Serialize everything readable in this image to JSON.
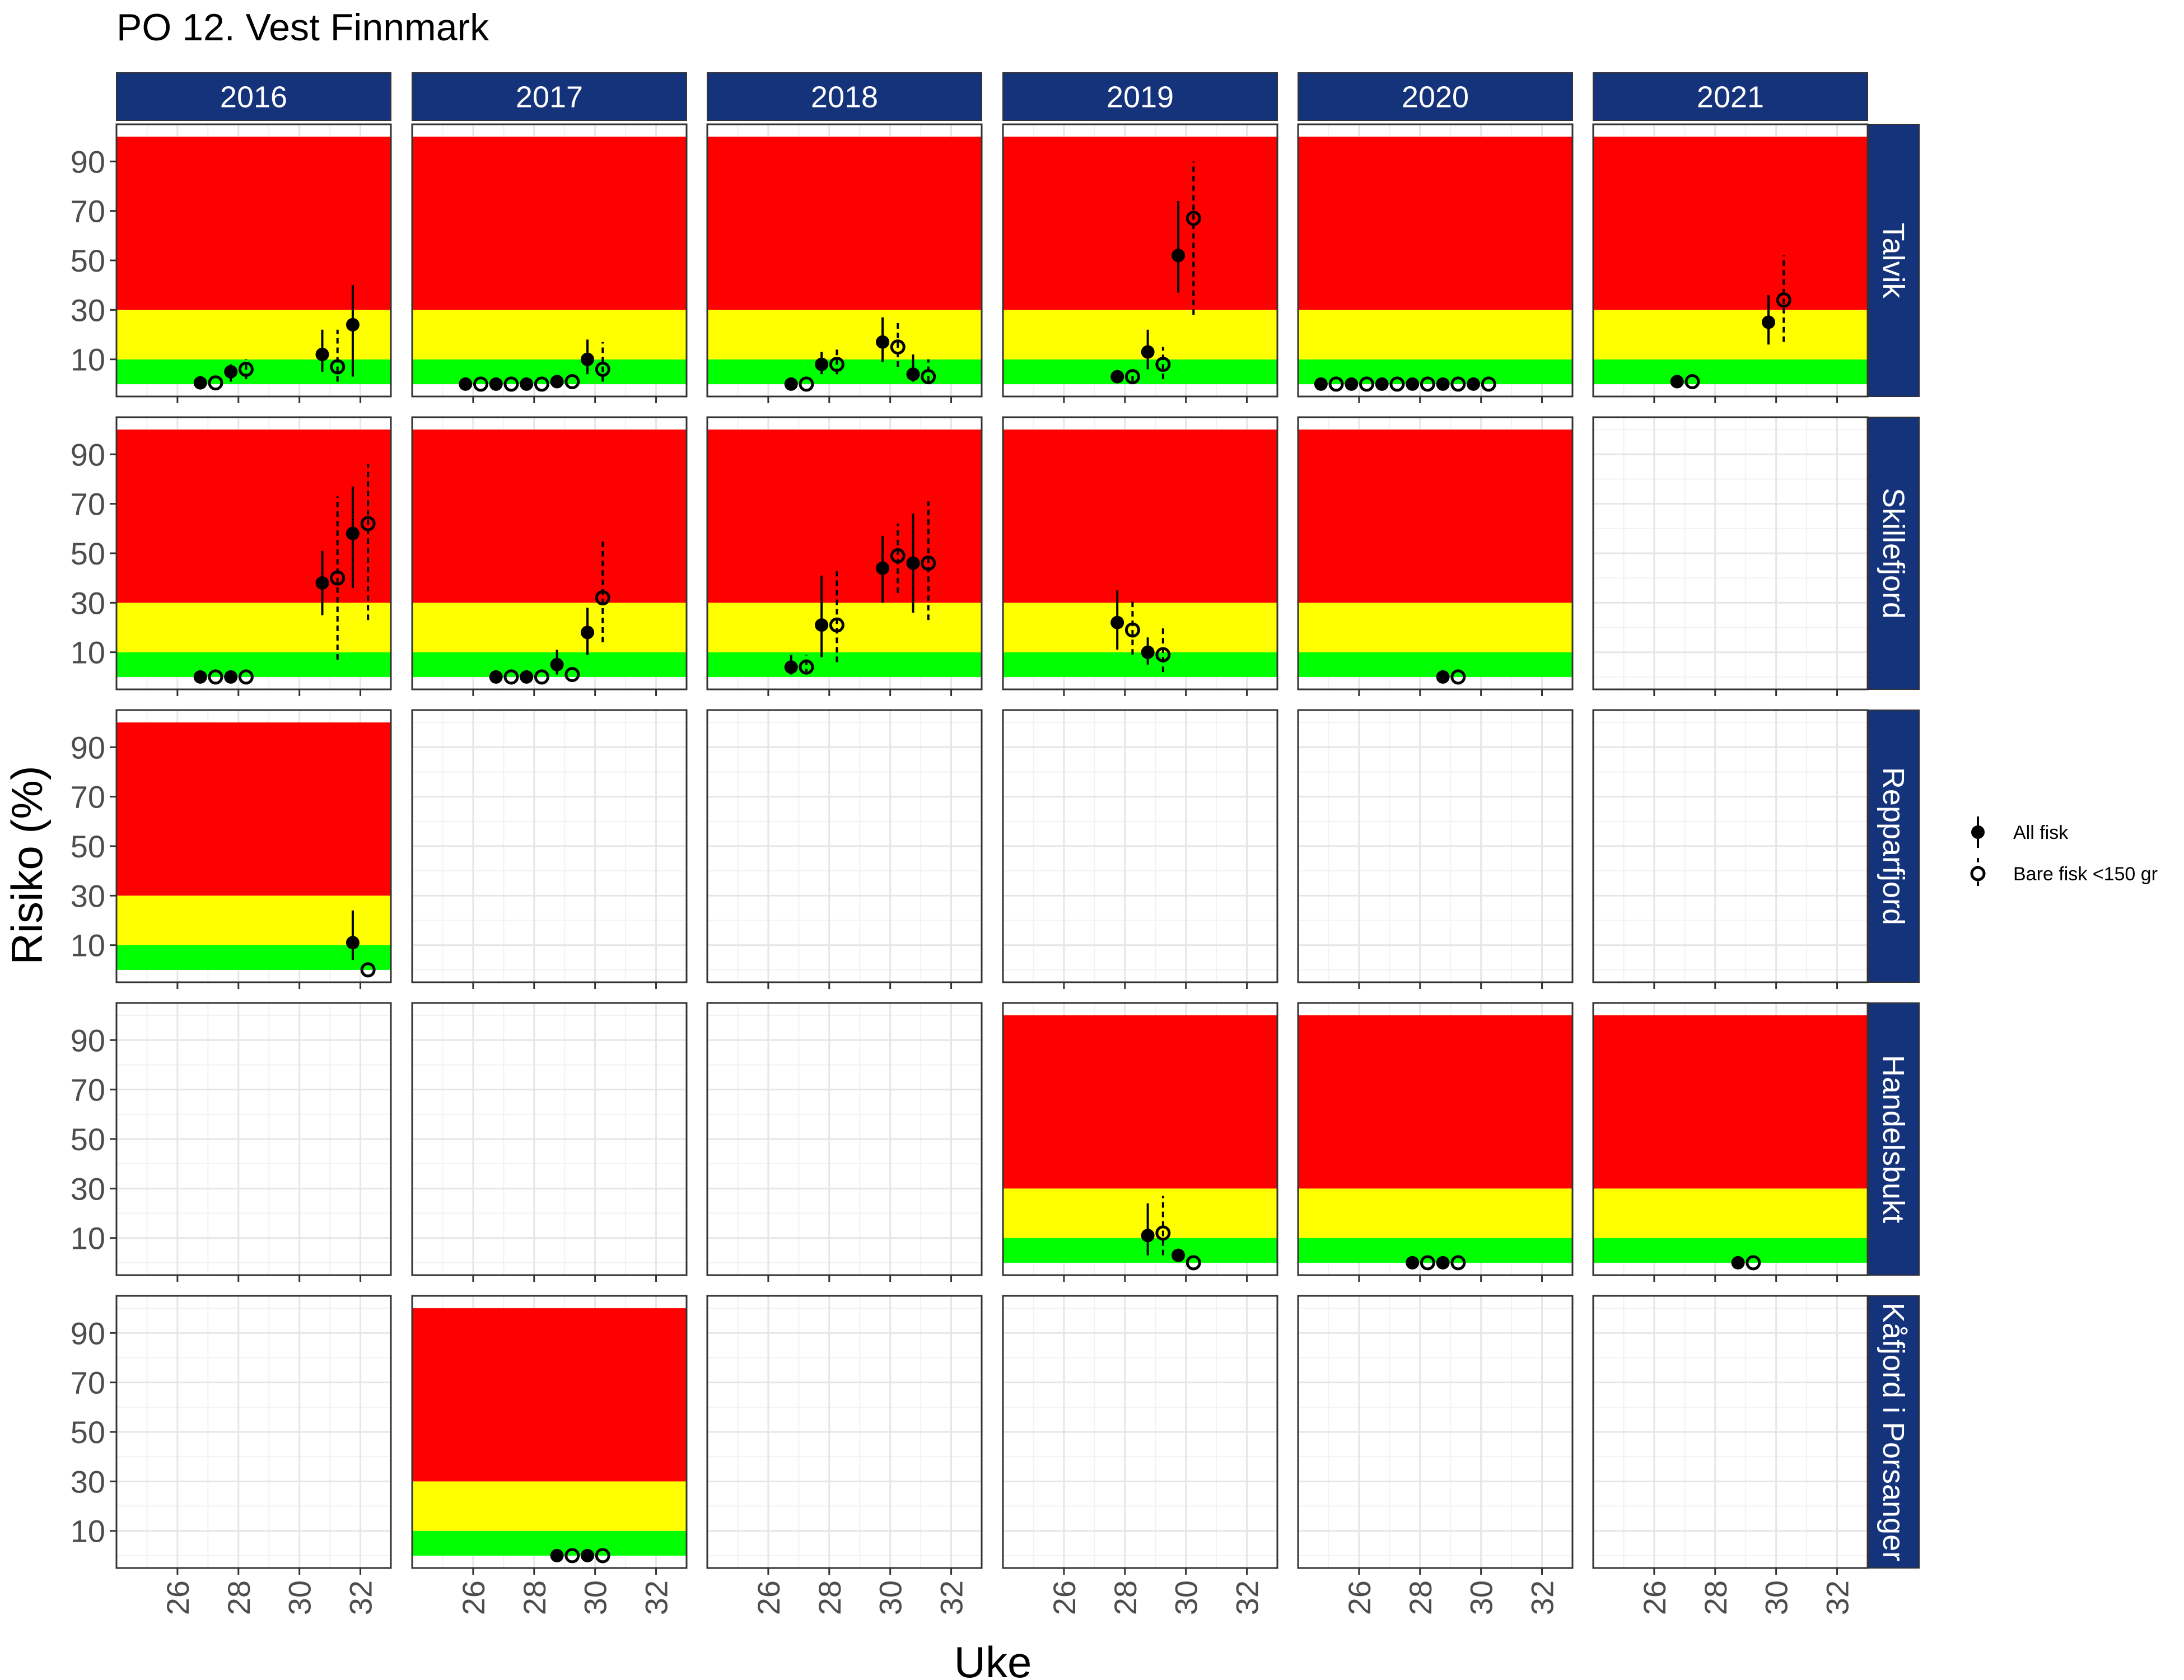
{
  "chart_data": {
    "type": "scatter",
    "title": "PO 12. Vest Finnmark",
    "xlabel": "Uke",
    "ylabel": "Risiko (%)",
    "xlim": [
      24,
      33
    ],
    "ylim": [
      -5,
      105
    ],
    "x_ticks": [
      26,
      28,
      30,
      32
    ],
    "y_ticks": [
      10,
      30,
      50,
      70,
      90
    ],
    "bands": [
      {
        "name": "green",
        "from": 0,
        "to": 10,
        "color": "#00ff00"
      },
      {
        "name": "yellow",
        "from": 10,
        "to": 30,
        "color": "#ffff00"
      },
      {
        "name": "red",
        "from": 30,
        "to": 100,
        "color": "#ff0000"
      }
    ],
    "years": [
      "2016",
      "2017",
      "2018",
      "2019",
      "2020",
      "2021"
    ],
    "locations": [
      "Talvik",
      "Skillefjord",
      "Repparfjord",
      "Handelsbukt",
      "Kåfjord i Porsanger"
    ],
    "strip_color": "#14337a",
    "legend": [
      {
        "key": "all",
        "label": "All fisk"
      },
      {
        "key": "small",
        "label": "Bare fisk <150 gr"
      }
    ],
    "panels": [
      {
        "location": "Talvik",
        "year": "2016",
        "bands": true,
        "points": [
          {
            "week": 27,
            "type": "all",
            "value": 0.5
          },
          {
            "week": 27,
            "type": "small",
            "value": 0.5
          },
          {
            "week": 28,
            "type": "all",
            "value": 5,
            "lo": 1,
            "hi": 8
          },
          {
            "week": 28,
            "type": "small",
            "value": 6,
            "lo": 2,
            "hi": 10
          },
          {
            "week": 31,
            "type": "all",
            "value": 12,
            "lo": 5,
            "hi": 22
          },
          {
            "week": 31,
            "type": "small",
            "value": 7,
            "lo": 1,
            "hi": 22
          },
          {
            "week": 32,
            "type": "all",
            "value": 24,
            "lo": 3,
            "hi": 40
          }
        ]
      },
      {
        "location": "Talvik",
        "year": "2017",
        "bands": true,
        "points": [
          {
            "week": 26,
            "type": "all",
            "value": 0
          },
          {
            "week": 26,
            "type": "small",
            "value": 0
          },
          {
            "week": 27,
            "type": "all",
            "value": 0
          },
          {
            "week": 27,
            "type": "small",
            "value": 0
          },
          {
            "week": 28,
            "type": "all",
            "value": 0
          },
          {
            "week": 28,
            "type": "small",
            "value": 0
          },
          {
            "week": 29,
            "type": "all",
            "value": 1
          },
          {
            "week": 29,
            "type": "small",
            "value": 1
          },
          {
            "week": 30,
            "type": "all",
            "value": 10,
            "lo": 4,
            "hi": 18
          },
          {
            "week": 30,
            "type": "small",
            "value": 6,
            "lo": 1,
            "hi": 17
          }
        ]
      },
      {
        "location": "Talvik",
        "year": "2018",
        "bands": true,
        "points": [
          {
            "week": 27,
            "type": "all",
            "value": 0
          },
          {
            "week": 27,
            "type": "small",
            "value": 0
          },
          {
            "week": 28,
            "type": "all",
            "value": 8,
            "lo": 4,
            "hi": 13
          },
          {
            "week": 28,
            "type": "small",
            "value": 8,
            "lo": 4,
            "hi": 14
          },
          {
            "week": 30,
            "type": "all",
            "value": 17,
            "lo": 9,
            "hi": 27
          },
          {
            "week": 30,
            "type": "small",
            "value": 15,
            "lo": 7,
            "hi": 26
          },
          {
            "week": 31,
            "type": "all",
            "value": 4,
            "lo": 1,
            "hi": 12
          },
          {
            "week": 31,
            "type": "small",
            "value": 3,
            "lo": 1,
            "hi": 10
          }
        ]
      },
      {
        "location": "Talvik",
        "year": "2019",
        "bands": true,
        "points": [
          {
            "week": 28,
            "type": "all",
            "value": 3
          },
          {
            "week": 28,
            "type": "small",
            "value": 3,
            "lo": 1,
            "hi": 6
          },
          {
            "week": 29,
            "type": "all",
            "value": 13,
            "lo": 6,
            "hi": 22
          },
          {
            "week": 29,
            "type": "small",
            "value": 8,
            "lo": 2,
            "hi": 15
          },
          {
            "week": 30,
            "type": "all",
            "value": 52,
            "lo": 37,
            "hi": 74
          },
          {
            "week": 30,
            "type": "small",
            "value": 67,
            "lo": 28,
            "hi": 90
          }
        ]
      },
      {
        "location": "Talvik",
        "year": "2020",
        "bands": true,
        "points": [
          {
            "week": 25,
            "type": "all",
            "value": 0
          },
          {
            "week": 25,
            "type": "small",
            "value": 0
          },
          {
            "week": 26,
            "type": "all",
            "value": 0
          },
          {
            "week": 26,
            "type": "small",
            "value": 0
          },
          {
            "week": 27,
            "type": "all",
            "value": 0
          },
          {
            "week": 27,
            "type": "small",
            "value": 0
          },
          {
            "week": 28,
            "type": "all",
            "value": 0
          },
          {
            "week": 28,
            "type": "small",
            "value": 0
          },
          {
            "week": 29,
            "type": "all",
            "value": 0
          },
          {
            "week": 29,
            "type": "small",
            "value": 0
          },
          {
            "week": 30,
            "type": "all",
            "value": 0
          },
          {
            "week": 30,
            "type": "small",
            "value": 0
          }
        ]
      },
      {
        "location": "Talvik",
        "year": "2021",
        "bands": true,
        "points": [
          {
            "week": 27,
            "type": "all",
            "value": 1
          },
          {
            "week": 27,
            "type": "small",
            "value": 1
          },
          {
            "week": 30,
            "type": "all",
            "value": 25,
            "lo": 16,
            "hi": 36
          },
          {
            "week": 30,
            "type": "small",
            "value": 34,
            "lo": 17,
            "hi": 52
          }
        ]
      },
      {
        "location": "Skillefjord",
        "year": "2016",
        "bands": true,
        "points": [
          {
            "week": 27,
            "type": "all",
            "value": 0
          },
          {
            "week": 27,
            "type": "small",
            "value": 0
          },
          {
            "week": 28,
            "type": "all",
            "value": 0
          },
          {
            "week": 28,
            "type": "small",
            "value": 0
          },
          {
            "week": 31,
            "type": "all",
            "value": 38,
            "lo": 25,
            "hi": 51
          },
          {
            "week": 31,
            "type": "small",
            "value": 40,
            "lo": 7,
            "hi": 73
          },
          {
            "week": 32,
            "type": "all",
            "value": 58,
            "lo": 36,
            "hi": 77
          },
          {
            "week": 32,
            "type": "small",
            "value": 62,
            "lo": 23,
            "hi": 86
          }
        ]
      },
      {
        "location": "Skillefjord",
        "year": "2017",
        "bands": true,
        "points": [
          {
            "week": 27,
            "type": "all",
            "value": 0
          },
          {
            "week": 27,
            "type": "small",
            "value": 0
          },
          {
            "week": 28,
            "type": "all",
            "value": 0
          },
          {
            "week": 28,
            "type": "small",
            "value": 0
          },
          {
            "week": 29,
            "type": "all",
            "value": 5,
            "lo": 1,
            "hi": 11
          },
          {
            "week": 29,
            "type": "small",
            "value": 1
          },
          {
            "week": 30,
            "type": "all",
            "value": 18,
            "lo": 9,
            "hi": 28
          },
          {
            "week": 30,
            "type": "small",
            "value": 32,
            "lo": 14,
            "hi": 55
          }
        ]
      },
      {
        "location": "Skillefjord",
        "year": "2018",
        "bands": true,
        "points": [
          {
            "week": 27,
            "type": "all",
            "value": 4,
            "lo": 1,
            "hi": 9
          },
          {
            "week": 27,
            "type": "small",
            "value": 4,
            "lo": 1,
            "hi": 9
          },
          {
            "week": 28,
            "type": "all",
            "value": 21,
            "lo": 8,
            "hi": 41
          },
          {
            "week": 28,
            "type": "small",
            "value": 21,
            "lo": 6,
            "hi": 44
          },
          {
            "week": 30,
            "type": "all",
            "value": 44,
            "lo": 30,
            "hi": 57
          },
          {
            "week": 30,
            "type": "small",
            "value": 49,
            "lo": 34,
            "hi": 62
          },
          {
            "week": 31,
            "type": "all",
            "value": 46,
            "lo": 26,
            "hi": 66
          },
          {
            "week": 31,
            "type": "small",
            "value": 46,
            "lo": 23,
            "hi": 71
          }
        ]
      },
      {
        "location": "Skillefjord",
        "year": "2019",
        "bands": true,
        "points": [
          {
            "week": 28,
            "type": "all",
            "value": 22,
            "lo": 11,
            "hi": 35
          },
          {
            "week": 28,
            "type": "small",
            "value": 19,
            "lo": 9,
            "hi": 31
          },
          {
            "week": 29,
            "type": "all",
            "value": 10,
            "lo": 5,
            "hi": 16
          },
          {
            "week": 29,
            "type": "small",
            "value": 9,
            "lo": 2,
            "hi": 21
          }
        ]
      },
      {
        "location": "Skillefjord",
        "year": "2020",
        "bands": true,
        "points": [
          {
            "week": 29,
            "type": "all",
            "value": 0
          },
          {
            "week": 29,
            "type": "small",
            "value": 0
          }
        ]
      },
      {
        "location": "Skillefjord",
        "year": "2021",
        "bands": false,
        "points": []
      },
      {
        "location": "Repparfjord",
        "year": "2016",
        "bands": true,
        "points": [
          {
            "week": 32,
            "type": "all",
            "value": 11,
            "lo": 4,
            "hi": 24
          },
          {
            "week": 32,
            "type": "small",
            "value": 0
          }
        ]
      },
      {
        "location": "Repparfjord",
        "year": "2017",
        "bands": false,
        "points": []
      },
      {
        "location": "Repparfjord",
        "year": "2018",
        "bands": false,
        "points": []
      },
      {
        "location": "Repparfjord",
        "year": "2019",
        "bands": false,
        "points": []
      },
      {
        "location": "Repparfjord",
        "year": "2020",
        "bands": false,
        "points": []
      },
      {
        "location": "Repparfjord",
        "year": "2021",
        "bands": false,
        "points": []
      },
      {
        "location": "Handelsbukt",
        "year": "2016",
        "bands": false,
        "points": []
      },
      {
        "location": "Handelsbukt",
        "year": "2017",
        "bands": false,
        "points": []
      },
      {
        "location": "Handelsbukt",
        "year": "2018",
        "bands": false,
        "points": []
      },
      {
        "location": "Handelsbukt",
        "year": "2019",
        "bands": true,
        "points": [
          {
            "week": 29,
            "type": "all",
            "value": 11,
            "lo": 3,
            "hi": 24
          },
          {
            "week": 29,
            "type": "small",
            "value": 12,
            "lo": 3,
            "hi": 27
          },
          {
            "week": 30,
            "type": "all",
            "value": 3
          },
          {
            "week": 30,
            "type": "small",
            "value": 0
          }
        ]
      },
      {
        "location": "Handelsbukt",
        "year": "2020",
        "bands": true,
        "points": [
          {
            "week": 28,
            "type": "all",
            "value": 0
          },
          {
            "week": 28,
            "type": "small",
            "value": 0
          },
          {
            "week": 29,
            "type": "all",
            "value": 0
          },
          {
            "week": 29,
            "type": "small",
            "value": 0
          }
        ]
      },
      {
        "location": "Handelsbukt",
        "year": "2021",
        "bands": true,
        "points": [
          {
            "week": 29,
            "type": "all",
            "value": 0
          },
          {
            "week": 29,
            "type": "small",
            "value": 0
          }
        ]
      },
      {
        "location": "Kåfjord i Porsanger",
        "year": "2016",
        "bands": false,
        "points": []
      },
      {
        "location": "Kåfjord i Porsanger",
        "year": "2017",
        "bands": true,
        "points": [
          {
            "week": 29,
            "type": "all",
            "value": 0
          },
          {
            "week": 29,
            "type": "small",
            "value": 0
          },
          {
            "week": 30,
            "type": "all",
            "value": 0
          },
          {
            "week": 30,
            "type": "small",
            "value": 0
          }
        ]
      },
      {
        "location": "Kåfjord i Porsanger",
        "year": "2018",
        "bands": false,
        "points": []
      },
      {
        "location": "Kåfjord i Porsanger",
        "year": "2019",
        "bands": false,
        "points": []
      },
      {
        "location": "Kåfjord i Porsanger",
        "year": "2020",
        "bands": false,
        "points": []
      },
      {
        "location": "Kåfjord i Porsanger",
        "year": "2021",
        "bands": false,
        "points": []
      }
    ]
  }
}
